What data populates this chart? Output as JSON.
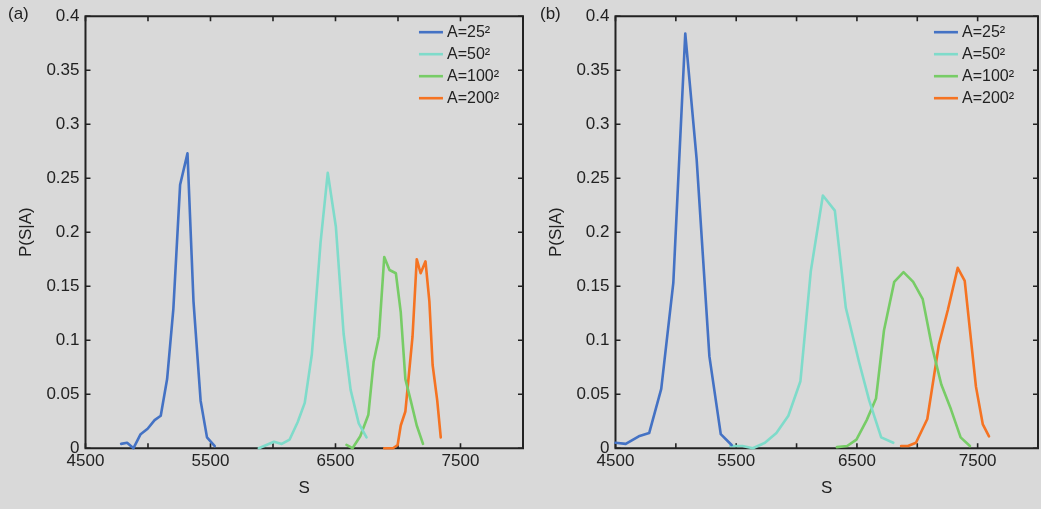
{
  "chart_data": [
    {
      "type": "line",
      "title": "(a)",
      "xlabel": "S",
      "ylabel": "P(S|A)",
      "xlim": [
        4500,
        8000
      ],
      "ylim": [
        0,
        0.4
      ],
      "xticks": [
        4500,
        {
          "value": 5000,
          "label": null
        },
        5500,
        {
          "value": 6000,
          "label": null
        },
        6500,
        {
          "value": 7000,
          "label": null
        },
        7500,
        {
          "value": 8000,
          "label": null
        }
      ],
      "yticks": [
        0,
        0.05,
        0.1,
        0.15,
        0.2,
        0.25,
        0.3,
        0.35,
        0.4
      ],
      "legend": "top right",
      "marker": "none",
      "grid": false,
      "series": [
        {
          "name": "A=25²",
          "color": "#4472c4",
          "x": [
            4785,
            4833,
            4884,
            4941,
            4997,
            5053,
            5102,
            5153,
            5203,
            5257,
            5316,
            5364,
            5421,
            5472,
            5534
          ],
          "values": [
            0.004,
            0.005,
            0.0,
            0.013,
            0.018,
            0.026,
            0.03,
            0.064,
            0.129,
            0.244,
            0.273,
            0.136,
            0.044,
            0.01,
            0.002
          ]
        },
        {
          "name": "A=50²",
          "color": "#7fdbca",
          "x": [
            5887,
            6008,
            6070,
            6133,
            6197,
            6254,
            6311,
            6381,
            6438,
            6503,
            6565,
            6621,
            6686,
            6748
          ],
          "values": [
            0.0,
            0.006,
            0.004,
            0.008,
            0.024,
            0.042,
            0.087,
            0.191,
            0.255,
            0.205,
            0.106,
            0.054,
            0.023,
            0.01
          ]
        },
        {
          "name": "A=100²",
          "color": "#77cc66",
          "x": [
            6588,
            6636,
            6698,
            6763,
            6805,
            6847,
            6890,
            6932,
            6983,
            7022,
            7059,
            7102,
            7150,
            7200
          ],
          "values": [
            0.003,
            0.0,
            0.011,
            0.031,
            0.08,
            0.103,
            0.177,
            0.165,
            0.162,
            0.126,
            0.064,
            0.044,
            0.021,
            0.004
          ]
        },
        {
          "name": "A=200²",
          "color": "#f57322",
          "x": [
            6890,
            6960,
            6997,
            7022,
            7059,
            7116,
            7150,
            7181,
            7220,
            7251,
            7277,
            7314,
            7342
          ],
          "values": [
            0.0,
            0.0,
            0.003,
            0.021,
            0.034,
            0.103,
            0.175,
            0.162,
            0.173,
            0.136,
            0.077,
            0.044,
            0.01
          ]
        }
      ]
    },
    {
      "type": "line",
      "title": "(b)",
      "xlabel": "S",
      "ylabel": "P(S|A)",
      "xlim": [
        4500,
        8000
      ],
      "ylim": [
        0,
        0.4
      ],
      "xticks": [
        4500,
        {
          "value": 5000,
          "label": null
        },
        5500,
        {
          "value": 6000,
          "label": null
        },
        6500,
        {
          "value": 7000,
          "label": null
        },
        7500,
        {
          "value": 8000,
          "label": null
        }
      ],
      "yticks": [
        0,
        0.05,
        0.1,
        0.15,
        0.2,
        0.25,
        0.3,
        0.35,
        0.4
      ],
      "legend": "top right",
      "marker": "none",
      "grid": false,
      "series": [
        {
          "name": "A=25²",
          "color": "#4472c4",
          "x": [
            4500,
            4585,
            4693,
            4779,
            4879,
            4979,
            5078,
            5172,
            5278,
            5372,
            5462
          ],
          "values": [
            0.005,
            0.004,
            0.011,
            0.014,
            0.055,
            0.153,
            0.384,
            0.268,
            0.085,
            0.013,
            0.003
          ]
        },
        {
          "name": "A=50²",
          "color": "#7fdbca",
          "x": [
            5452,
            5552,
            5638,
            5738,
            5833,
            5932,
            6032,
            6118,
            6218,
            6317,
            6408,
            6517,
            6602,
            6701,
            6801
          ],
          "values": [
            0.002,
            0.002,
            0.0,
            0.005,
            0.014,
            0.03,
            0.062,
            0.164,
            0.234,
            0.22,
            0.13,
            0.08,
            0.044,
            0.01,
            0.005
          ]
        },
        {
          "name": "A=100²",
          "color": "#77cc66",
          "x": [
            6334,
            6419,
            6496,
            6581,
            6658,
            6724,
            6809,
            6886,
            6966,
            7045,
            7122,
            7199,
            7279,
            7359,
            7436
          ],
          "values": [
            0.001,
            0.002,
            0.008,
            0.026,
            0.046,
            0.109,
            0.154,
            0.163,
            0.154,
            0.138,
            0.094,
            0.059,
            0.036,
            0.01,
            0.002
          ]
        },
        {
          "name": "A=200²",
          "color": "#f57322",
          "x": [
            6866,
            6923,
            6989,
            7083,
            7179,
            7253,
            7335,
            7393,
            7486,
            7543,
            7594
          ],
          "values": [
            0.002,
            0.002,
            0.005,
            0.027,
            0.096,
            0.128,
            0.167,
            0.155,
            0.057,
            0.022,
            0.011
          ]
        }
      ]
    }
  ]
}
